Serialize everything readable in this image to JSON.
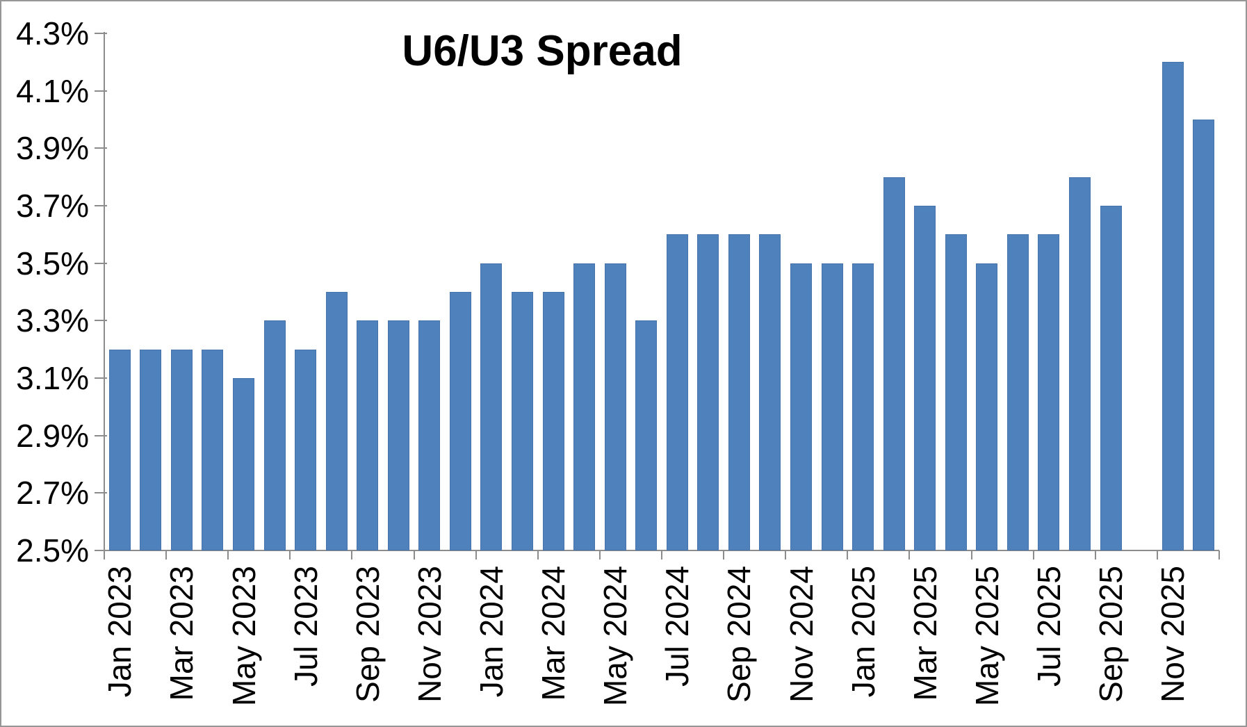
{
  "title": "U6/U3 Spread",
  "colors": {
    "bar": "#4F81BD",
    "axis": "#8C8C8C",
    "text": "#000000",
    "frame_border": "#969696",
    "background": "#FFFFFF"
  },
  "chart_data": {
    "type": "bar",
    "title": "U6/U3 Spread",
    "categories": [
      "Jan 2023",
      "Feb 2023",
      "Mar 2023",
      "Apr 2023",
      "May 2023",
      "Jun 2023",
      "Jul 2023",
      "Aug 2023",
      "Sep 2023",
      "Oct 2023",
      "Nov 2023",
      "Dec 2023",
      "Jan 2024",
      "Feb 2024",
      "Mar 2024",
      "Apr 2024",
      "May 2024",
      "Jun 2024",
      "Jul 2024",
      "Aug 2024",
      "Sep 2024",
      "Oct 2024",
      "Nov 2024",
      "Dec 2024",
      "Jan 2025",
      "Feb 2025",
      "Mar 2025",
      "Apr 2025",
      "May 2025",
      "Jun 2025",
      "Jul 2025",
      "Aug 2025",
      "Sep 2025",
      "Oct 2025",
      "Nov 2025",
      "Dec 2025"
    ],
    "values": [
      3.2,
      3.2,
      3.2,
      3.2,
      3.1,
      3.3,
      3.2,
      3.4,
      3.3,
      3.3,
      3.3,
      3.4,
      3.5,
      3.4,
      3.4,
      3.5,
      3.5,
      3.3,
      3.6,
      3.6,
      3.6,
      3.6,
      3.5,
      3.5,
      3.5,
      3.8,
      3.7,
      3.6,
      3.5,
      3.6,
      3.6,
      3.8,
      3.7,
      null,
      4.2,
      4.0
    ],
    "ylim": [
      2.5,
      4.3
    ],
    "y_tick_step": 0.2,
    "y_tick_labels": [
      "4.3%",
      "4.1%",
      "3.9%",
      "3.7%",
      "3.5%",
      "3.3%",
      "3.1%",
      "2.9%",
      "2.7%",
      "2.5%"
    ],
    "x_label_interval": 2,
    "x_tick_labels_shown": [
      "Jan 2023",
      "Mar 2023",
      "May 2023",
      "Jul 2023",
      "Sep 2023",
      "Nov 2023",
      "Jan 2024",
      "Mar 2024",
      "May 2024",
      "Jul 2024",
      "Sep 2024",
      "Nov 2024",
      "Jan 2025",
      "Mar 2025",
      "May 2025",
      "Jul 2025",
      "Sep 2025",
      "Nov 2025"
    ],
    "grid": false,
    "legend_position": "none",
    "bar_color": "#4F81BD"
  }
}
